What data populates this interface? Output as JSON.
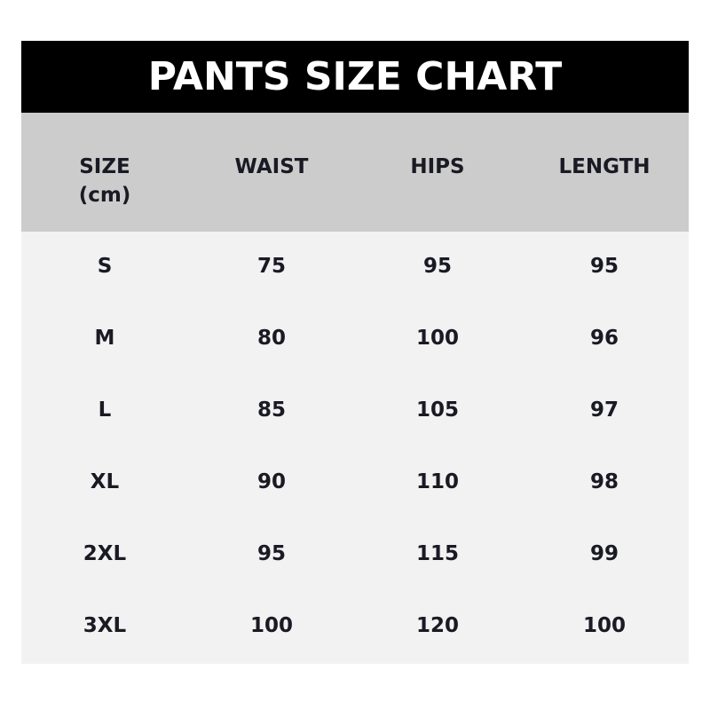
{
  "title": "PANTS SIZE CHART",
  "headers": [
    "SIZE\n(cm)",
    "WAIST",
    "HIPS",
    "LENGTH"
  ],
  "header_lines": [
    [
      "SIZE",
      "(cm)"
    ],
    [
      "WAIST"
    ],
    [
      "HIPS"
    ],
    [
      "LENGTH"
    ]
  ],
  "rows": [
    [
      "S",
      "75",
      "95",
      "95"
    ],
    [
      "M",
      "80",
      "100",
      "96"
    ],
    [
      "L",
      "85",
      "105",
      "97"
    ],
    [
      "XL",
      "90",
      "110",
      "98"
    ],
    [
      "2XL",
      "95",
      "115",
      "99"
    ],
    [
      "3XL",
      "100",
      "120",
      "100"
    ]
  ],
  "colors": {
    "title_bg": "#000000",
    "header_bg": "#cccccc",
    "body_bg": "#f2f2f2",
    "text": "#1a1a24"
  }
}
